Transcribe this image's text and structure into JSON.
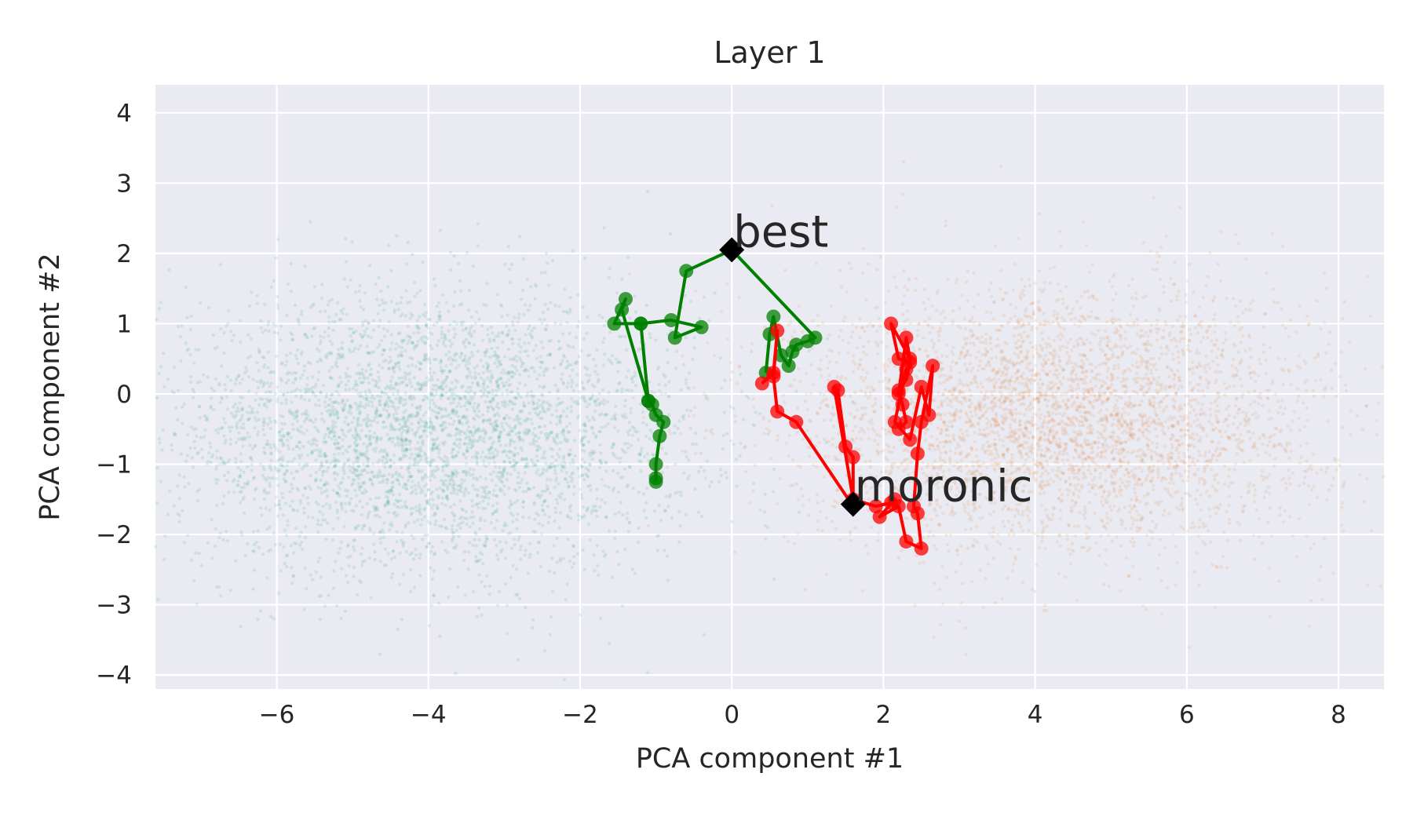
{
  "chart_data": {
    "type": "scatter",
    "title": "Layer 1",
    "xlabel": "PCA component #1",
    "ylabel": "PCA component #2",
    "xlim": [
      -7.6,
      8.6
    ],
    "ylim": [
      -4.2,
      4.4
    ],
    "xticks": [
      -6,
      -4,
      -2,
      0,
      2,
      4,
      6,
      8
    ],
    "yticks": [
      -4,
      -3,
      -2,
      -1,
      0,
      1,
      2,
      3,
      4
    ],
    "xtick_labels": [
      "−6",
      "−4",
      "−2",
      "0",
      "2",
      "4",
      "6",
      "8"
    ],
    "ytick_labels": [
      "−4",
      "−3",
      "−2",
      "−1",
      "0",
      "1",
      "2",
      "3",
      "4"
    ],
    "grid": true,
    "background": "#eaeaf2",
    "clouds": [
      {
        "color": "#1b9e77",
        "center": [
          -4.0,
          -0.55
        ],
        "spread": [
          1.75,
          1.0
        ],
        "count": 4200,
        "opacity": 0.12
      },
      {
        "color": "#d95f02",
        "center": [
          4.3,
          -0.35
        ],
        "spread": [
          1.75,
          0.95
        ],
        "count": 4200,
        "opacity": 0.1
      }
    ],
    "trajectories": [
      {
        "color": "#008000",
        "end_word": "best",
        "points": [
          [
            -1.0,
            -1.25
          ],
          [
            -1.0,
            -1.2
          ],
          [
            -1.0,
            -1.0
          ],
          [
            -0.95,
            -0.6
          ],
          [
            -0.9,
            -0.4
          ],
          [
            -1.0,
            -0.3
          ],
          [
            -1.05,
            -0.15
          ],
          [
            -1.1,
            -0.1
          ],
          [
            -1.2,
            1.0
          ],
          [
            -1.55,
            1.0
          ],
          [
            -1.4,
            1.35
          ],
          [
            -1.45,
            1.2
          ],
          [
            -1.1,
            -0.1
          ],
          [
            -1.2,
            1.0
          ],
          [
            -0.8,
            1.05
          ],
          [
            -0.4,
            0.95
          ],
          [
            -0.75,
            0.8
          ],
          [
            -0.6,
            1.75
          ],
          [
            0.0,
            2.05
          ],
          [
            1.1,
            0.8
          ],
          [
            1.0,
            0.75
          ],
          [
            0.85,
            0.7
          ],
          [
            0.8,
            0.6
          ],
          [
            0.75,
            0.4
          ],
          [
            0.65,
            0.55
          ],
          [
            0.55,
            1.1
          ],
          [
            0.5,
            0.85
          ],
          [
            0.45,
            0.3
          ]
        ]
      },
      {
        "color": "#ff0000",
        "end_word": "moronic",
        "points": [
          [
            0.4,
            0.15
          ],
          [
            0.55,
            0.3
          ],
          [
            0.6,
            0.9
          ],
          [
            0.55,
            0.25
          ],
          [
            0.6,
            -0.25
          ],
          [
            0.85,
            -0.4
          ],
          [
            1.6,
            -1.6
          ],
          [
            1.6,
            -0.9
          ],
          [
            1.5,
            -0.75
          ],
          [
            1.4,
            0.05
          ],
          [
            1.35,
            0.1
          ],
          [
            1.6,
            -1.5
          ],
          [
            1.9,
            -1.6
          ],
          [
            2.1,
            -1.55
          ],
          [
            2.15,
            -1.5
          ],
          [
            1.95,
            -1.75
          ],
          [
            2.2,
            -1.6
          ],
          [
            2.3,
            -2.1
          ],
          [
            2.5,
            -2.2
          ],
          [
            2.45,
            -1.7
          ],
          [
            2.4,
            -1.6
          ],
          [
            2.45,
            -0.85
          ],
          [
            2.5,
            -0.4
          ],
          [
            2.65,
            0.4
          ],
          [
            2.6,
            -0.3
          ],
          [
            2.5,
            0.1
          ],
          [
            2.35,
            -0.65
          ],
          [
            2.15,
            -0.4
          ],
          [
            2.3,
            0.35
          ],
          [
            2.2,
            0.0
          ],
          [
            2.3,
            0.8
          ],
          [
            2.35,
            0.5
          ],
          [
            2.1,
            1.0
          ],
          [
            2.2,
            0.5
          ],
          [
            2.35,
            0.45
          ],
          [
            2.3,
            0.2
          ],
          [
            2.2,
            0.05
          ],
          [
            2.25,
            -0.15
          ],
          [
            2.3,
            -0.4
          ],
          [
            2.2,
            -0.5
          ]
        ]
      }
    ],
    "markers": [
      {
        "label": "best",
        "x": 0.0,
        "y": 2.05
      },
      {
        "label": "moronic",
        "x": 1.6,
        "y": -1.57
      }
    ]
  }
}
